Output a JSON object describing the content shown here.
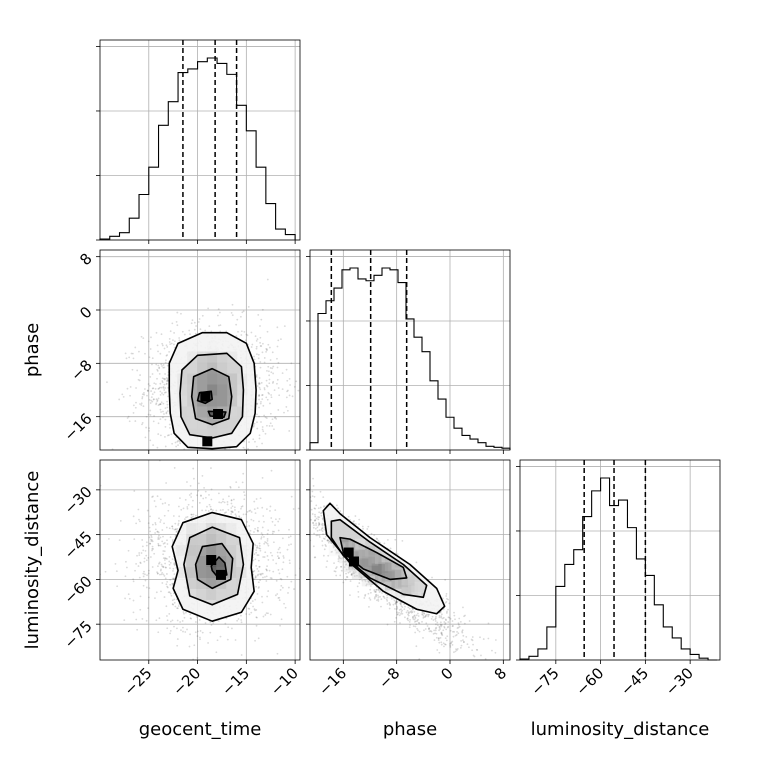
{
  "chart_data": {
    "type": "corner",
    "parameters": [
      "geocent_time",
      "phase",
      "luminosity_distance"
    ],
    "grid": true,
    "ranges": {
      "geocent_time": [
        -30,
        -9.5
      ],
      "phase": [
        -21,
        9
      ],
      "luminosity_distance": [
        -87,
        -20
      ]
    },
    "ticks": {
      "geocent_time": [
        -25,
        -20,
        -15,
        -10
      ],
      "phase": [
        -16,
        -8,
        0,
        8
      ],
      "luminosity_distance": [
        -75,
        -60,
        -45,
        -30
      ]
    },
    "tick_labels": {
      "geocent_time": [
        "−25",
        "−20",
        "−15",
        "−10"
      ],
      "phase": [
        "−16",
        "−8",
        "0",
        "8"
      ],
      "luminosity_distance": [
        "−75",
        "−60",
        "−45",
        "−30"
      ]
    },
    "histograms": [
      {
        "name": "geocent_time",
        "edges": [
          -30,
          -29,
          -28,
          -27,
          -26,
          -25,
          -24,
          -23,
          -22,
          -21,
          -20,
          -19,
          -18,
          -17,
          -16,
          -15,
          -14,
          -13,
          -12,
          -11,
          -10
        ],
        "counts": [
          0.005,
          0.02,
          0.04,
          0.12,
          0.25,
          0.4,
          0.63,
          0.76,
          0.92,
          0.94,
          0.98,
          1.0,
          0.97,
          0.91,
          0.74,
          0.6,
          0.4,
          0.2,
          0.06,
          0.03
        ],
        "quantiles": [
          -21.5,
          -18.2,
          -16.0
        ]
      },
      {
        "name": "phase",
        "edges": [
          -21,
          -19.8,
          -18.6,
          -17.4,
          -16.2,
          -15,
          -13.8,
          -12.6,
          -11.4,
          -10.2,
          -9,
          -7.8,
          -6.6,
          -5.4,
          -4.2,
          -3,
          -1.8,
          -0.6,
          0.6,
          1.8,
          3,
          4.2,
          5.4,
          6.6,
          7.8,
          9
        ],
        "counts": [
          0.04,
          0.75,
          0.82,
          0.89,
          0.99,
          1.0,
          0.94,
          0.93,
          0.96,
          1.0,
          0.99,
          0.92,
          0.72,
          0.62,
          0.54,
          0.38,
          0.28,
          0.18,
          0.12,
          0.08,
          0.06,
          0.04,
          0.02,
          0.015,
          0.01
        ],
        "quantiles": [
          -17.8,
          -11.9,
          -6.5
        ]
      },
      {
        "name": "luminosity_distance",
        "edges": [
          -87,
          -84,
          -81,
          -78,
          -75,
          -72,
          -69,
          -66,
          -63,
          -60,
          -57,
          -54,
          -51,
          -48,
          -45,
          -42,
          -39,
          -36,
          -33,
          -30,
          -27,
          -24,
          -21
        ],
        "counts": [
          0.005,
          0.02,
          0.06,
          0.18,
          0.4,
          0.52,
          0.6,
          0.78,
          0.92,
          0.99,
          0.84,
          0.87,
          0.72,
          0.55,
          0.46,
          0.3,
          0.18,
          0.12,
          0.06,
          0.03,
          0.01,
          0.0
        ],
        "quantiles": [
          -65.5,
          -55.5,
          -45.0
        ]
      }
    ],
    "joint_2d": [
      {
        "x": "geocent_time",
        "y": "phase",
        "center": [
          -18.5,
          -12.0
        ],
        "sigma": [
          3.0,
          4.2
        ],
        "correlation": 0.0,
        "peaks": [
          [
            -19.2,
            -13.0
          ],
          [
            -17.9,
            -15.6
          ],
          [
            -19.0,
            -19.7
          ]
        ],
        "contours": [
          {
            "level": "outer",
            "points": [
              [
                -22.9,
                -12.0
              ],
              [
                -22.9,
                -8.0
              ],
              [
                -22.0,
                -5.0
              ],
              [
                -19.5,
                -3.4
              ],
              [
                -17.0,
                -3.4
              ],
              [
                -15.0,
                -5.0
              ],
              [
                -14.2,
                -8.0
              ],
              [
                -14.0,
                -12.0
              ],
              [
                -14.1,
                -15.5
              ],
              [
                -14.6,
                -18.5
              ],
              [
                -16.0,
                -20.5
              ],
              [
                -18.5,
                -20.8
              ],
              [
                -21.0,
                -20.6
              ],
              [
                -22.4,
                -18.5
              ],
              [
                -22.8,
                -15.5
              ]
            ]
          },
          {
            "level": "mid",
            "points": [
              [
                -21.8,
                -12.5
              ],
              [
                -21.6,
                -9.0
              ],
              [
                -20.0,
                -6.8
              ],
              [
                -17.0,
                -6.5
              ],
              [
                -15.5,
                -8.5
              ],
              [
                -15.3,
                -12.0
              ],
              [
                -15.4,
                -16.0
              ],
              [
                -16.5,
                -18.5
              ],
              [
                -18.5,
                -19.2
              ],
              [
                -20.8,
                -18.7
              ],
              [
                -21.7,
                -16.0
              ]
            ]
          },
          {
            "level": "inner",
            "points": [
              [
                -20.6,
                -13.0
              ],
              [
                -20.4,
                -10.0
              ],
              [
                -18.5,
                -8.8
              ],
              [
                -16.8,
                -10.0
              ],
              [
                -16.5,
                -13.0
              ],
              [
                -16.8,
                -16.3
              ],
              [
                -18.5,
                -17.2
              ],
              [
                -20.2,
                -16.3
              ]
            ]
          },
          {
            "level": "core1",
            "points": [
              [
                -20.0,
                -13.6
              ],
              [
                -19.8,
                -12.4
              ],
              [
                -18.6,
                -12.2
              ],
              [
                -18.5,
                -13.4
              ],
              [
                -19.2,
                -14.0
              ]
            ]
          },
          {
            "level": "core2",
            "points": [
              [
                -18.9,
                -15.2
              ],
              [
                -18.7,
                -15.9
              ],
              [
                -17.3,
                -16.1
              ],
              [
                -17.1,
                -15.3
              ]
            ]
          }
        ]
      },
      {
        "x": "geocent_time",
        "y": "luminosity_distance",
        "center": [
          -18.6,
          -54.0
        ],
        "sigma": [
          3.0,
          9.5
        ],
        "correlation": 0.0,
        "peaks": [
          [
            -18.6,
            -53.5
          ],
          [
            -17.6,
            -58.5
          ]
        ],
        "contours": [
          {
            "level": "outer",
            "points": [
              [
                -22.0,
                -57.0
              ],
              [
                -22.6,
                -49.0
              ],
              [
                -21.5,
                -41.0
              ],
              [
                -18.5,
                -37.6
              ],
              [
                -15.5,
                -40.0
              ],
              [
                -14.3,
                -48.0
              ],
              [
                -14.5,
                -56.0
              ],
              [
                -14.2,
                -64.0
              ],
              [
                -15.5,
                -71.0
              ],
              [
                -18.5,
                -74.0
              ],
              [
                -21.5,
                -70.0
              ],
              [
                -22.5,
                -63.0
              ]
            ]
          },
          {
            "level": "mid",
            "points": [
              [
                -21.4,
                -55.0
              ],
              [
                -20.8,
                -46.0
              ],
              [
                -18.5,
                -42.5
              ],
              [
                -15.7,
                -46.0
              ],
              [
                -15.3,
                -55.0
              ],
              [
                -15.9,
                -65.0
              ],
              [
                -18.5,
                -68.5
              ],
              [
                -20.8,
                -65.5
              ]
            ]
          },
          {
            "level": "inner",
            "points": [
              [
                -20.2,
                -55.0
              ],
              [
                -19.5,
                -49.0
              ],
              [
                -17.5,
                -48.0
              ],
              [
                -16.4,
                -53.0
              ],
              [
                -16.6,
                -60.0
              ],
              [
                -18.5,
                -63.0
              ],
              [
                -20.0,
                -60.0
              ]
            ]
          },
          {
            "level": "core",
            "points": [
              [
                -18.6,
                -55.5
              ],
              [
                -17.8,
                -52.5
              ],
              [
                -17.2,
                -54.5
              ],
              [
                -17.0,
                -58.5
              ],
              [
                -18.0,
                -59.0
              ],
              [
                -18.5,
                -57.0
              ]
            ]
          }
        ]
      },
      {
        "x": "phase",
        "y": "luminosity_distance",
        "center": [
          -11.0,
          -56.5
        ],
        "sigma": [
          6.0,
          12.0
        ],
        "correlation": -0.93,
        "peaks": [
          [
            -15.2,
            -51.0
          ],
          [
            -14.4,
            -54.0
          ]
        ],
        "contours": [
          {
            "level": "outer",
            "points": [
              [
                -19.0,
                -37.0
              ],
              [
                -18.0,
                -34.5
              ],
              [
                -16.5,
                -38.0
              ],
              [
                -12.0,
                -46.0
              ],
              [
                -6.0,
                -55.0
              ],
              [
                -2.0,
                -63.0
              ],
              [
                -0.8,
                -69.0
              ],
              [
                -2.0,
                -71.5
              ],
              [
                -5.0,
                -70.0
              ],
              [
                -10.0,
                -64.0
              ],
              [
                -15.0,
                -54.5
              ],
              [
                -18.5,
                -45.0
              ]
            ]
          },
          {
            "level": "mid",
            "points": [
              [
                -17.8,
                -40.5
              ],
              [
                -16.5,
                -40.0
              ],
              [
                -12.0,
                -47.5
              ],
              [
                -7.0,
                -55.0
              ],
              [
                -3.5,
                -62.0
              ],
              [
                -4.0,
                -66.0
              ],
              [
                -7.0,
                -65.0
              ],
              [
                -12.0,
                -59.5
              ],
              [
                -16.0,
                -52.0
              ],
              [
                -17.8,
                -46.0
              ]
            ]
          },
          {
            "level": "inner",
            "points": [
              [
                -16.5,
                -46.0
              ],
              [
                -15.0,
                -46.5
              ],
              [
                -11.0,
                -51.0
              ],
              [
                -7.0,
                -56.0
              ],
              [
                -6.5,
                -59.5
              ],
              [
                -9.0,
                -60.0
              ],
              [
                -13.0,
                -56.5
              ],
              [
                -16.0,
                -51.0
              ]
            ]
          }
        ]
      }
    ]
  }
}
